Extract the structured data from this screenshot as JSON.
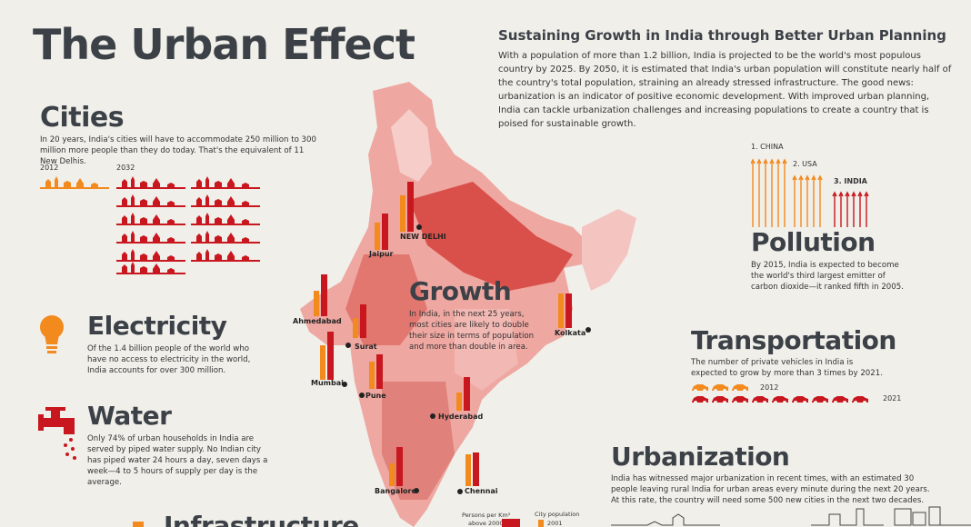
{
  "header": {
    "title": "The Urban Effect",
    "subtitle": "Sustaining Growth in India through Better Urban Planning",
    "intro": "With a population of more than 1.2 billion, India is projected to be the world's most populous country by 2025. By 2050, it is estimated that India's urban population will constitute nearly half of the country's total population, straining an already stressed infrastructure. The good news: urbanization is an indicator of positive economic development. With improved urban planning, India can tackle urbanization challenges and increasing populations to create a country that is poised for sustainable growth."
  },
  "cities": {
    "heading": "Cities",
    "text": "In 20 years, India's cities will have to accommodate 250 million to 300 million more people than they do today. That's the equivalent of 11 New Delhis.",
    "year_start": "2012",
    "year_end": "2032"
  },
  "electricity": {
    "heading": "Electricity",
    "text": "Of the 1.4 billion people of the world who have no access to electricity in the world, India accounts for over 300 million."
  },
  "water": {
    "heading": "Water",
    "text": "Only 74% of urban households in India are served by piped water supply. No Indian city has piped water 24 hours a day, seven days a week—4 to 5 hours of supply per day is the average."
  },
  "infrastructure": {
    "heading": "Infrastructure"
  },
  "growth": {
    "heading": "Growth",
    "text": "In India, in the next 25 years, most cities are likely to double their size in terms of population and more than double in area."
  },
  "pollution": {
    "heading": "Pollution",
    "rank1": "1. CHINA",
    "rank2": "2. USA",
    "rank3": "3. INDIA",
    "text": "By 2015, India is expected to become the world's third largest emitter of carbon dioxide—it ranked fifth in 2005."
  },
  "transportation": {
    "heading": "Transportation",
    "text": "The number of private vehicles in India is expected to grow by more than 3 times by 2021.",
    "year_start": "2012",
    "year_end": "2021"
  },
  "urbanization": {
    "heading": "Urbanization",
    "text": "India has witnessed major urbanization in recent times, with an estimated 30 people leaving rural India for urban areas every minute during the next 20 years. At this rate, the country will need some 500 new cities in the next two decades."
  },
  "map": {
    "cities": {
      "new_delhi": "NEW DELHI",
      "jaipur": "Jaipur",
      "ahmedabad": "Ahmedabad",
      "surat": "Surat",
      "mumbai": "Mumbai",
      "pune": "Pune",
      "hyderabad": "Hyderabad",
      "bangalore": "Bangalore",
      "chennai": "Chennai",
      "kolkata": "Kolkata"
    },
    "legend": {
      "density_title": "Persons per Km²",
      "density_item": "above 2000",
      "pop_title": "City population",
      "pop_item": "2001"
    }
  },
  "colors": {
    "accent_orange": "#f28a1e",
    "accent_red": "#c8171e",
    "dark_text": "#3c4147",
    "map_light": "#f4c4c0",
    "map_mid": "#e8837c",
    "map_dark": "#cf4a44"
  }
}
